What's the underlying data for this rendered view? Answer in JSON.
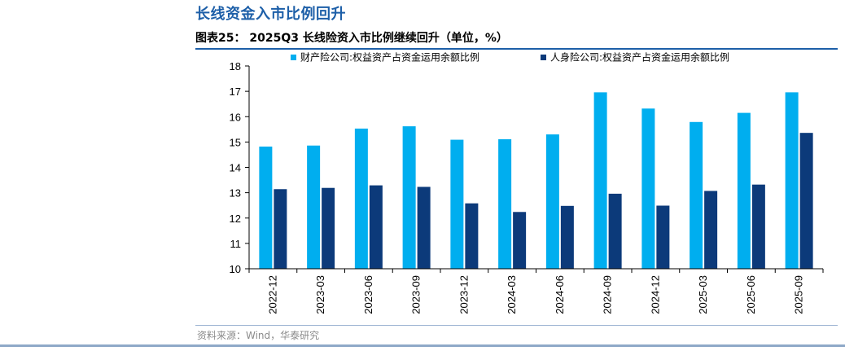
{
  "header": {
    "headline": "长线资金入市比例回升",
    "figure_title": "图表25：  2025Q3 长线险资入市比例继续回升（单位，%）",
    "source": "资料来源：Wind，华泰研究"
  },
  "colors": {
    "series1": "#00aeef",
    "series2": "#0c3a7a",
    "headline": "#1d5fa8"
  },
  "chart_data": {
    "type": "bar",
    "title": "2025Q3 长线险资入市比例继续回升（单位，%）",
    "categories": [
      "2022-12",
      "2023-03",
      "2023-06",
      "2023-09",
      "2023-12",
      "2024-03",
      "2024-06",
      "2024-09",
      "2024-12",
      "2025-03",
      "2025-06",
      "2025-09"
    ],
    "series": [
      {
        "name": "财产险公司:权益资产占资金运用余额比例",
        "values": [
          14.82,
          14.86,
          15.53,
          15.62,
          15.09,
          15.11,
          15.3,
          16.96,
          16.32,
          15.79,
          16.15,
          16.96
        ]
      },
      {
        "name": "人身险公司:权益资产占资金运用余额比例",
        "values": [
          13.14,
          13.19,
          13.29,
          13.23,
          12.58,
          12.24,
          12.48,
          12.96,
          12.49,
          13.07,
          13.32,
          15.36
        ]
      }
    ],
    "ylim": [
      10,
      18
    ],
    "yticks": [
      10,
      11,
      12,
      13,
      14,
      15,
      16,
      17,
      18
    ],
    "legend_position": "top",
    "grid": false
  }
}
